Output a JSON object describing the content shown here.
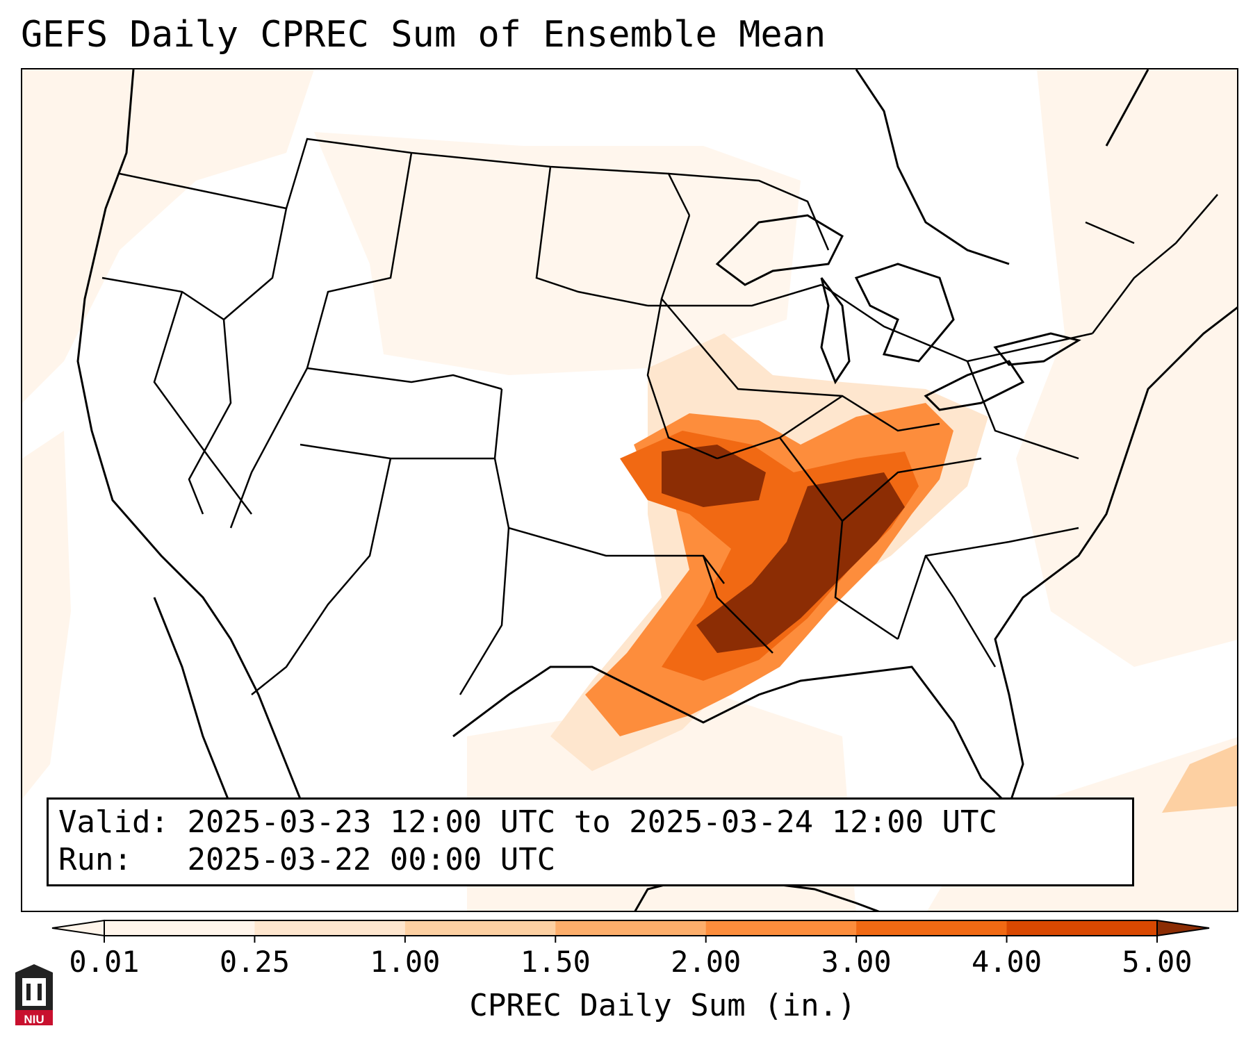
{
  "title": "GEFS Daily CPREC Sum of Ensemble Mean",
  "info": {
    "valid_label": "Valid:",
    "valid_value": "2025-03-23 12:00 UTC to 2025-03-24 12:00 UTC",
    "run_label": "Run:",
    "run_value": "2025-03-22 00:00 UTC"
  },
  "colorbar": {
    "label": "CPREC Daily Sum (in.)",
    "ticks": [
      "0.01",
      "0.25",
      "1.00",
      "1.50",
      "2.00",
      "3.00",
      "4.00",
      "5.00"
    ],
    "colors": [
      "#fff5eb",
      "#fee6ce",
      "#fdd0a2",
      "#fdae6b",
      "#fd8d3c",
      "#f16913",
      "#d94801",
      "#8c2d04"
    ]
  },
  "logo": {
    "text": "NIU",
    "colors": {
      "dark": "#222222",
      "red": "#c8102e"
    }
  }
}
